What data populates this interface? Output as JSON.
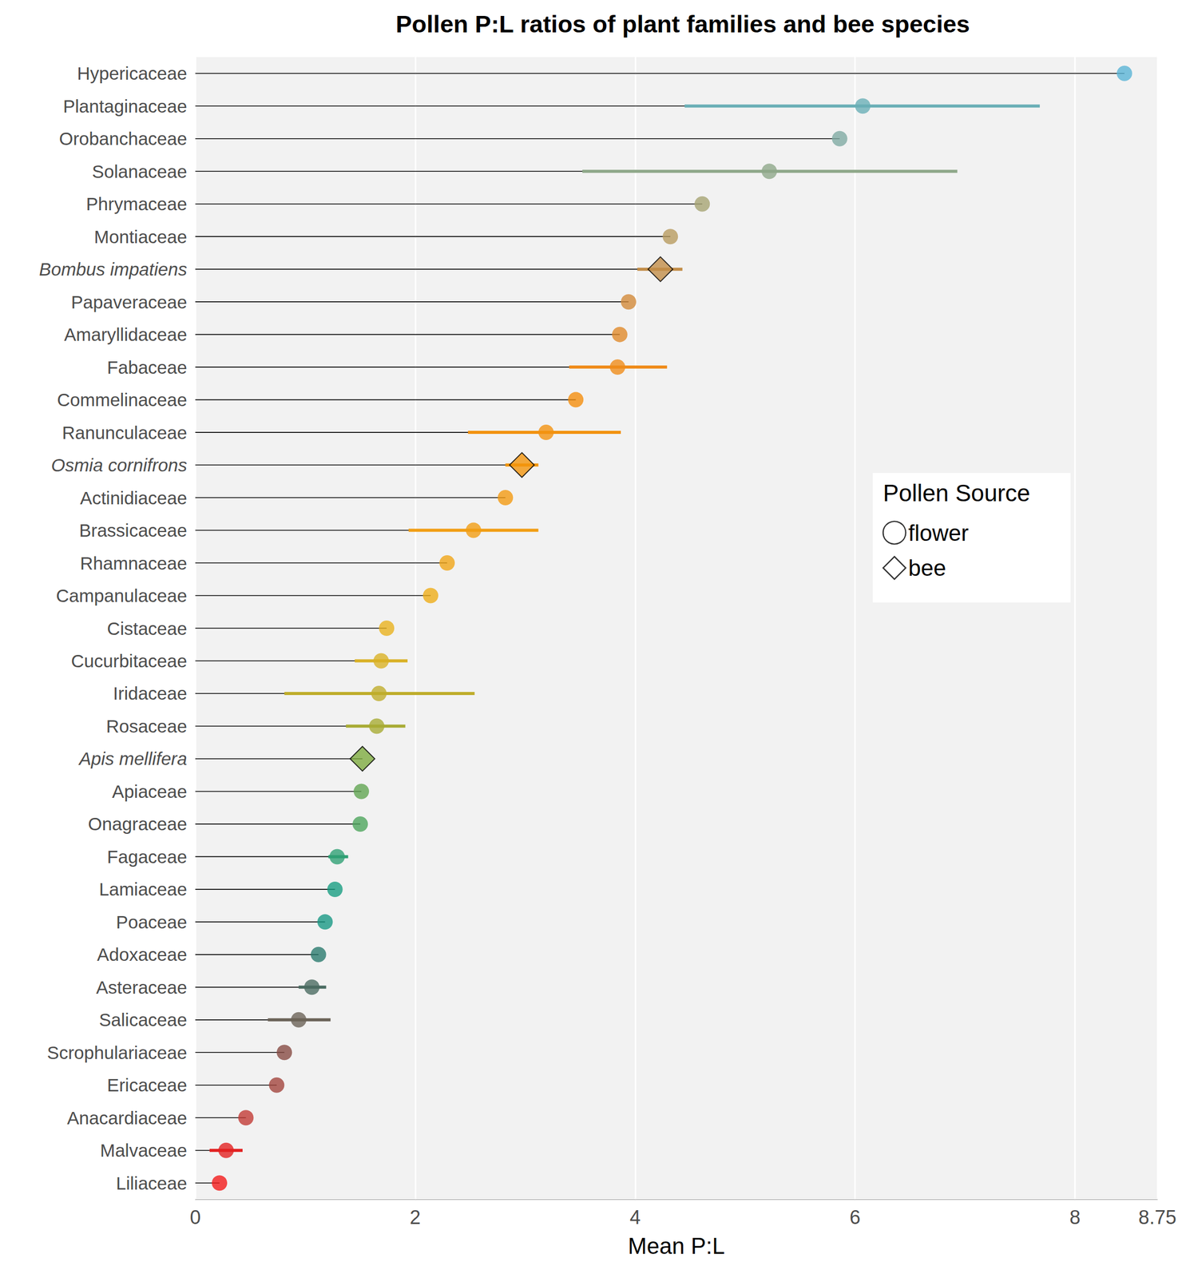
{
  "chart_data": {
    "type": "lollipop",
    "title": "Pollen P:L ratios of plant families and bee species",
    "x_label": "Mean P:L",
    "orientation": "horizontal",
    "categories": [
      "Hypericaceae",
      "Plantaginaceae",
      "Orobanchaceae",
      "Solanaceae",
      "Phrymaceae",
      "Montiaceae",
      "Bombus impatiens",
      "Papaveraceae",
      "Amaryllidaceae",
      "Fabaceae",
      "Commelinaceae",
      "Ranunculaceae",
      "Osmia cornifrons",
      "Actinidiaceae",
      "Brassicaceae",
      "Rhamnaceae",
      "Campanulaceae",
      "Cistaceae",
      "Cucurbitaceae",
      "Iridaceae",
      "Rosaceae",
      "Apis mellifera",
      "Apiaceae",
      "Onagraceae",
      "Fagaceae",
      "Lamiaceae",
      "Poaceae",
      "Adoxaceae",
      "Asteraceae",
      "Salicaceae",
      "Scrophulariaceae",
      "Ericaceae",
      "Anacardiaceae",
      "Malvaceae",
      "Liliaceae"
    ],
    "colors": [
      "#5ab4d6",
      "#6aafb6",
      "#80aaa3",
      "#8fa88a",
      "#a6a473",
      "#b89b5f",
      "#c28d48",
      "#d2893a",
      "#e08a2a",
      "#ef8c1a",
      "#f48d0d",
      "#f29210",
      "#f2950d",
      "#f39a12",
      "#f19e14",
      "#f0a516",
      "#eeac18",
      "#e9b21e",
      "#d9b126",
      "#bfad2c",
      "#a8ab34",
      "#7eab40",
      "#62a552",
      "#4ea55d",
      "#2fa074",
      "#199e82",
      "#199884",
      "#2a7a6e",
      "#4b6c62",
      "#6b6358",
      "#874b43",
      "#a3453d",
      "#c23b36",
      "#e22222",
      "#f21a1a"
    ],
    "series": [
      {
        "name": "flower",
        "marker": "circle",
        "values": [
          8.45,
          6.07,
          5.86,
          5.22,
          4.61,
          4.32,
          null,
          3.94,
          3.86,
          3.84,
          3.46,
          3.19,
          null,
          2.82,
          2.53,
          2.29,
          2.14,
          1.74,
          1.69,
          1.67,
          1.65,
          null,
          1.51,
          1.5,
          1.29,
          1.27,
          1.18,
          1.12,
          1.06,
          0.94,
          0.81,
          0.74,
          0.46,
          0.28,
          0.22
        ]
      },
      {
        "name": "bee",
        "marker": "diamond",
        "values": [
          null,
          null,
          null,
          null,
          null,
          null,
          4.23,
          null,
          null,
          null,
          null,
          null,
          2.97,
          null,
          null,
          null,
          null,
          null,
          null,
          null,
          null,
          1.52,
          null,
          null,
          null,
          null,
          null,
          null,
          null,
          null,
          null,
          null,
          null,
          null,
          null
        ]
      }
    ],
    "error_low": [
      null,
      4.45,
      null,
      3.52,
      null,
      null,
      4.02,
      null,
      null,
      3.4,
      null,
      2.48,
      2.82,
      null,
      1.94,
      null,
      null,
      null,
      1.45,
      0.81,
      1.37,
      null,
      null,
      null,
      1.21,
      null,
      null,
      null,
      0.94,
      0.66,
      null,
      null,
      null,
      0.13,
      null
    ],
    "error_high": [
      null,
      7.68,
      null,
      6.93,
      null,
      null,
      4.43,
      null,
      null,
      4.29,
      null,
      3.87,
      3.12,
      null,
      3.12,
      null,
      null,
      null,
      1.93,
      2.54,
      1.91,
      null,
      null,
      null,
      1.39,
      null,
      null,
      null,
      1.19,
      1.23,
      null,
      null,
      null,
      0.43,
      null
    ],
    "xlim": [
      0,
      8.75
    ],
    "xticks": [
      0,
      2,
      4,
      6,
      8
    ],
    "grid": true,
    "legend": "right",
    "legend_title": "Pollen Source"
  }
}
